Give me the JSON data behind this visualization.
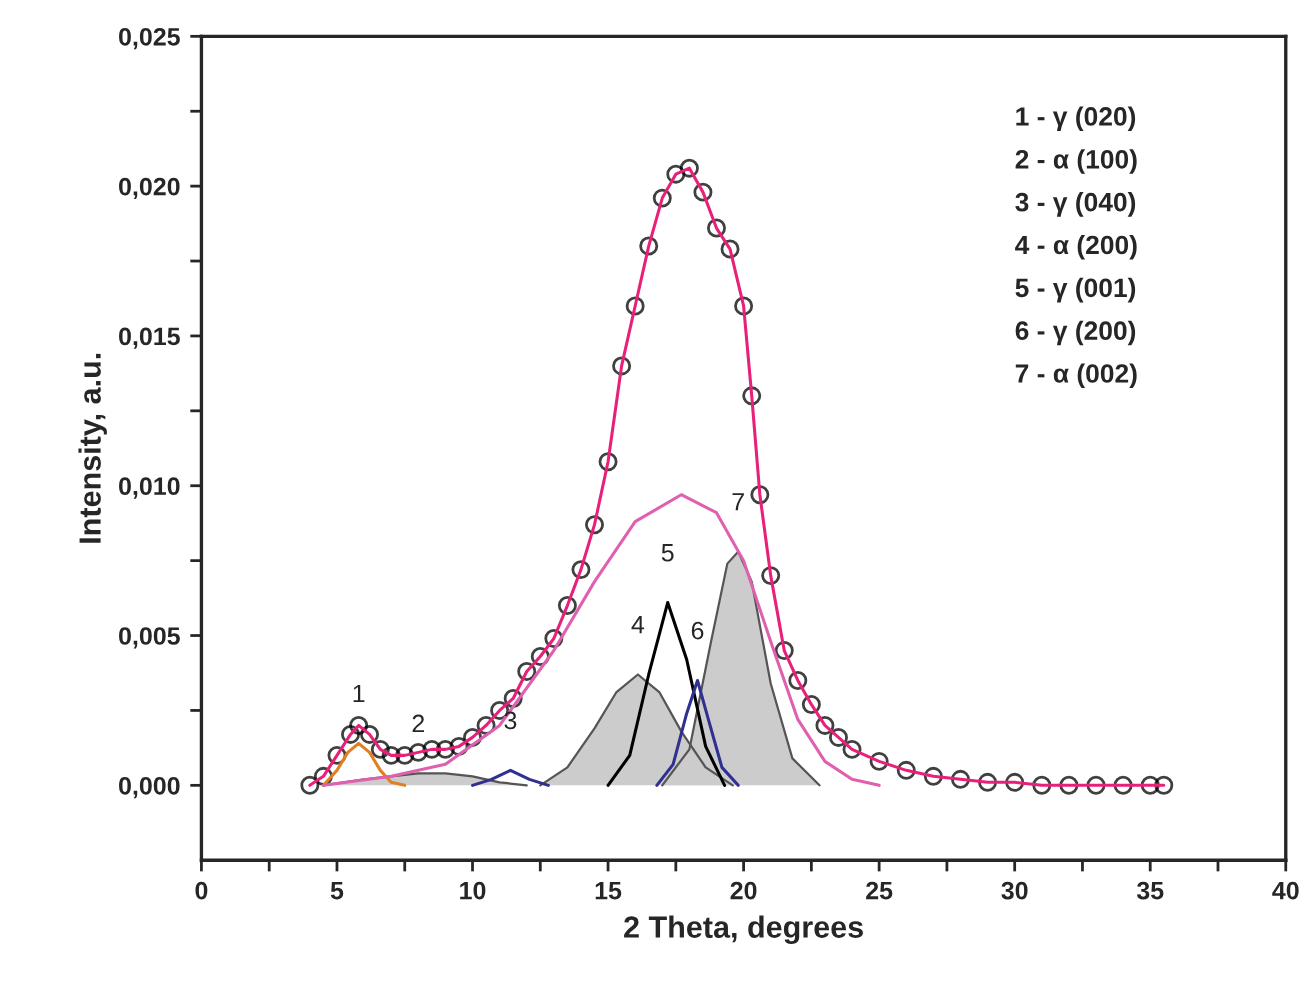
{
  "chart_data": {
    "type": "line",
    "xlabel": "2 Theta, degrees",
    "ylabel": "Intensity, a.u.",
    "xlim": [
      0,
      40
    ],
    "xticks": [
      0,
      {
        "value": 2.5,
        "label": null
      },
      5,
      {
        "value": 7.5,
        "label": null
      },
      10,
      {
        "value": 12.5,
        "label": null
      },
      15,
      {
        "value": 17.5,
        "label": null
      },
      20,
      {
        "value": 22.5,
        "label": null
      },
      25,
      {
        "value": 27.5,
        "label": null
      },
      30,
      {
        "value": 32.5,
        "label": null
      },
      35,
      {
        "value": 37.5,
        "label": null
      },
      40
    ],
    "ylim": [
      -0.0025,
      0.025
    ],
    "yticks": [
      {
        "value": 0,
        "label": "0,000"
      },
      {
        "value": 0.0025,
        "label": null
      },
      {
        "value": 0.005,
        "label": "0,005"
      },
      {
        "value": 0.0075,
        "label": null
      },
      {
        "value": 0.01,
        "label": "0,010"
      },
      {
        "value": 0.0125,
        "label": null
      },
      {
        "value": 0.015,
        "label": "0,015"
      },
      {
        "value": 0.0175,
        "label": null
      },
      {
        "value": 0.02,
        "label": "0,020"
      },
      {
        "value": 0.0225,
        "label": null
      },
      {
        "value": 0.025,
        "label": "0,025"
      }
    ],
    "grid": false,
    "legend": false,
    "series": [
      {
        "type": "area",
        "color": "#cccccc",
        "x": [
          4.5,
          6,
          7,
          8,
          9,
          10,
          11,
          12
        ],
        "values": [
          0,
          0.0002,
          0.0003,
          0.0004,
          0.0004,
          0.0003,
          0.0001,
          0
        ]
      },
      {
        "type": "area",
        "color": "#cccccc",
        "x": [
          12.5,
          13.5,
          14.5,
          15.3,
          16.1,
          16.9,
          17.7,
          18.6,
          19.6
        ],
        "values": [
          0,
          0.0006,
          0.0019,
          0.0031,
          0.0037,
          0.0031,
          0.0018,
          0.0006,
          0
        ]
      },
      {
        "type": "area",
        "color": "#cccccc",
        "x": [
          17,
          18,
          18.8,
          19.4,
          19.8,
          20.3,
          21,
          21.8,
          22.8
        ],
        "values": [
          0,
          0.0012,
          0.0048,
          0.0074,
          0.0078,
          0.0068,
          0.0034,
          0.0009,
          0
        ]
      },
      {
        "color": "#e08020",
        "x": [
          4.5,
          5.0,
          5.4,
          5.8,
          6.2,
          6.6,
          7.0,
          7.5
        ],
        "values": [
          0,
          0.0005,
          0.0011,
          0.0014,
          0.0011,
          0.0005,
          0.0001,
          0
        ]
      },
      {
        "color": "#303090",
        "x": [
          10,
          10.7,
          11.4,
          12.1,
          12.8
        ],
        "values": [
          0,
          0.0002,
          0.0005,
          0.0002,
          0
        ]
      },
      {
        "color": "#000000",
        "x": [
          15,
          15.8,
          16.5,
          17.2,
          17.9,
          18.6,
          19.3
        ],
        "values": [
          0,
          0.001,
          0.0037,
          0.0061,
          0.0042,
          0.0013,
          0
        ]
      },
      {
        "color": "#303090",
        "x": [
          16.8,
          17.4,
          17.9,
          18.3,
          18.7,
          19.2,
          19.8
        ],
        "values": [
          0,
          0.0007,
          0.0024,
          0.0035,
          0.0022,
          0.0006,
          0
        ]
      },
      {
        "color": "#e060b0",
        "x": [
          4.5,
          7,
          9,
          11,
          13,
          14.5,
          16,
          17.7,
          19,
          20,
          21,
          22,
          23,
          24,
          25
        ],
        "values": [
          0,
          0.0003,
          0.0007,
          0.002,
          0.0045,
          0.0068,
          0.0088,
          0.0097,
          0.0091,
          0.0075,
          0.0048,
          0.0022,
          0.0008,
          0.0002,
          0
        ]
      },
      {
        "type": "scatter",
        "marker": "circle",
        "color": "#000000",
        "x": [
          4.0,
          4.5,
          5.0,
          5.5,
          5.8,
          6.2,
          6.6,
          7.0,
          7.5,
          8,
          8.5,
          9,
          9.5,
          10,
          10.5,
          11,
          11.5,
          12,
          12.5,
          13,
          13.5,
          14,
          14.5,
          15,
          15.5,
          16,
          16.5,
          17,
          17.5,
          18,
          18.5,
          19,
          19.5,
          20,
          20.3,
          20.6,
          21,
          21.5,
          22,
          22.5,
          23,
          23.5,
          24,
          25,
          26,
          27,
          28,
          29,
          30,
          31,
          32,
          33,
          34,
          35,
          35.5
        ],
        "values": [
          0.0,
          0.0003,
          0.001,
          0.0017,
          0.002,
          0.0017,
          0.0012,
          0.001,
          0.001,
          0.0011,
          0.0012,
          0.0012,
          0.0013,
          0.0016,
          0.002,
          0.0025,
          0.0029,
          0.0038,
          0.0043,
          0.0049,
          0.006,
          0.0072,
          0.0087,
          0.0108,
          0.014,
          0.016,
          0.018,
          0.0196,
          0.0204,
          0.0206,
          0.0198,
          0.0186,
          0.0179,
          0.016,
          0.013,
          0.0097,
          0.007,
          0.0045,
          0.0035,
          0.0027,
          0.002,
          0.0016,
          0.0012,
          0.0008,
          0.0005,
          0.0003,
          0.0002,
          0.0001,
          0.0001,
          0.0,
          0.0,
          0.0,
          0.0,
          0.0,
          0.0
        ]
      },
      {
        "color": "#e8207a",
        "x": [
          4.0,
          4.5,
          5.0,
          5.5,
          5.8,
          6.2,
          6.6,
          7.0,
          7.5,
          8,
          8.5,
          9,
          9.5,
          10,
          10.5,
          11,
          11.5,
          12,
          12.5,
          13,
          13.5,
          14,
          14.5,
          15,
          15.5,
          16,
          16.5,
          17,
          17.5,
          18,
          18.5,
          19,
          19.5,
          20,
          20.3,
          20.6,
          21,
          21.5,
          22,
          22.5,
          23,
          23.5,
          24,
          25,
          26,
          27,
          28,
          29,
          30,
          31,
          32,
          33,
          34,
          35,
          35.5
        ],
        "values": [
          0.0,
          0.0003,
          0.001,
          0.0017,
          0.002,
          0.0017,
          0.0012,
          0.001,
          0.001,
          0.0011,
          0.0012,
          0.0012,
          0.0013,
          0.0016,
          0.002,
          0.0025,
          0.0029,
          0.0038,
          0.0043,
          0.0049,
          0.006,
          0.0072,
          0.0087,
          0.0108,
          0.014,
          0.016,
          0.018,
          0.0196,
          0.0204,
          0.0206,
          0.0198,
          0.0186,
          0.0179,
          0.016,
          0.013,
          0.0097,
          0.007,
          0.0045,
          0.0035,
          0.0027,
          0.002,
          0.0016,
          0.0012,
          0.0008,
          0.0005,
          0.0003,
          0.0002,
          0.0001,
          0.0001,
          0.0,
          0.0,
          0.0,
          0.0,
          0.0,
          0.0
        ]
      }
    ],
    "annotations": [
      {
        "text": "1",
        "x": 5.8,
        "y": 0.0014
      },
      {
        "text": "2",
        "x": 8,
        "y": 0.0004
      },
      {
        "text": "3",
        "x": 11.4,
        "y": 0.0005
      },
      {
        "text": "4",
        "x": 16.1,
        "y": 0.0037
      },
      {
        "text": "5",
        "x": 17.2,
        "y": 0.0061
      },
      {
        "text": "6",
        "x": 18.3,
        "y": 0.0035
      },
      {
        "text": "7",
        "x": 19.8,
        "y": 0.0078
      },
      "1 - γ (020)",
      "2 - α (100)",
      "3 - γ (040)",
      "4 - α (200)",
      "5 - γ (001)",
      "6 - γ (200)",
      "7 - α (002)"
    ]
  }
}
